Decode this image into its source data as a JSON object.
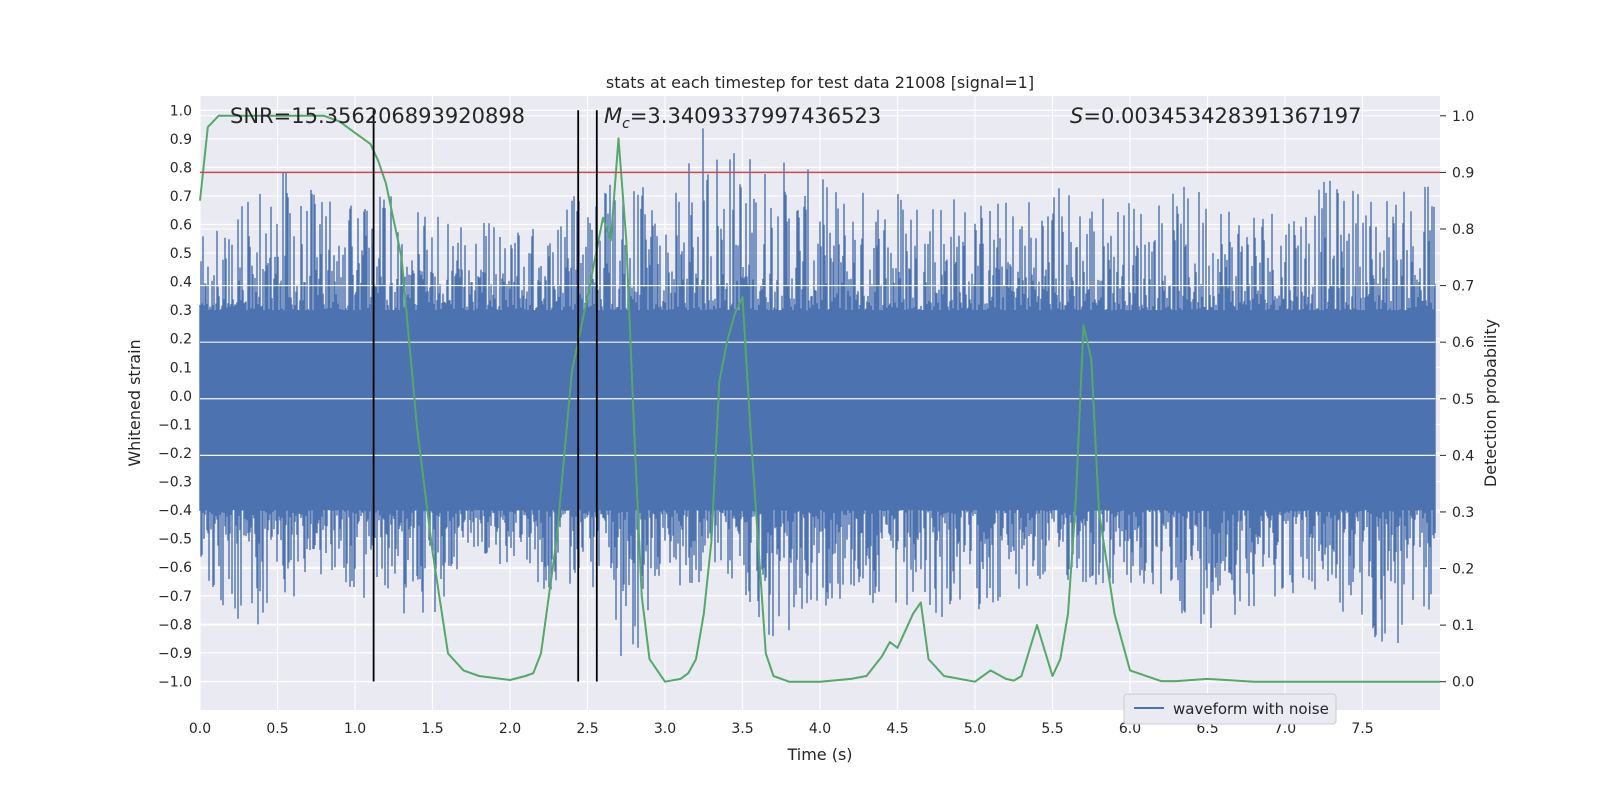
{
  "chart_data": {
    "type": "line",
    "title": "stats at each timestep for test data 21008 [signal=1]",
    "xlabel": "Time (s)",
    "ylabel_left": "Whitened strain",
    "ylabel_right": "Detection probability",
    "xlim": [
      0.0,
      8.0
    ],
    "ylim_left": [
      -1.1,
      1.05
    ],
    "ylim_right": [
      -0.05,
      1.035
    ],
    "x_ticks": [
      "0.0",
      "0.5",
      "1.0",
      "1.5",
      "2.0",
      "2.5",
      "3.0",
      "3.5",
      "4.0",
      "4.5",
      "5.0",
      "5.5",
      "6.0",
      "6.5",
      "7.0",
      "7.5"
    ],
    "y_ticks_left": [
      "1.0",
      "0.9",
      "0.8",
      "0.7",
      "0.6",
      "0.5",
      "0.4",
      "0.3",
      "0.2",
      "0.1",
      "0.0",
      "-0.1",
      "-0.2",
      "-0.3",
      "-0.4",
      "-0.5",
      "-0.6",
      "-0.7",
      "-0.8",
      "-0.9",
      "-1.0"
    ],
    "y_ticks_right": [
      "1.0",
      "0.9",
      "0.8",
      "0.7",
      "0.6",
      "0.5",
      "0.4",
      "0.3",
      "0.2",
      "0.1",
      "0.0"
    ],
    "grid": true,
    "legend_position": "lower-right",
    "annotations": {
      "snr": "SNR=15.356206893920898",
      "mc_symbol": "M",
      "mc_subscript": "c",
      "mc_value": "=3.3409337997436523",
      "s_symbol": "S",
      "s_value": "=0.003453428391367197"
    },
    "colors": {
      "waveform": "#4c72b0",
      "probability": "#55a868",
      "threshold": "#c44e52",
      "markers": "#000000",
      "background": "#eaeaf2"
    },
    "series": [
      {
        "name": "waveform with noise",
        "axis": "left",
        "summary": "dense noise trace spanning roughly -1.0 to 1.0",
        "envelope": {
          "x": [
            0.0,
            0.25,
            0.5,
            0.75,
            1.0,
            1.25,
            1.5,
            1.75,
            2.0,
            2.25,
            2.5,
            2.75,
            3.0,
            3.25,
            3.5,
            3.75,
            4.0,
            4.25,
            4.5,
            4.75,
            5.0,
            5.25,
            5.5,
            5.75,
            6.0,
            6.25,
            6.5,
            6.75,
            7.0,
            7.25,
            7.5,
            7.75,
            8.0
          ],
          "upper": [
            0.65,
            0.68,
            0.83,
            0.72,
            0.66,
            0.72,
            0.65,
            0.62,
            0.6,
            0.62,
            0.75,
            0.83,
            0.62,
            0.97,
            0.88,
            0.85,
            0.77,
            0.74,
            0.77,
            0.75,
            0.7,
            0.7,
            0.77,
            0.74,
            0.7,
            0.72,
            0.76,
            0.7,
            0.71,
            0.76,
            0.75,
            0.72,
            0.83
          ],
          "lower": [
            -0.6,
            -0.87,
            -0.81,
            -0.7,
            -0.7,
            -0.75,
            -0.8,
            -0.6,
            -0.6,
            -0.7,
            -0.65,
            -1.0,
            -0.7,
            -0.65,
            -0.7,
            -0.96,
            -0.75,
            -0.7,
            -0.83,
            -0.8,
            -0.75,
            -0.75,
            -0.65,
            -0.68,
            -0.7,
            -0.75,
            -0.82,
            -0.75,
            -0.7,
            -0.72,
            -0.85,
            -0.93,
            -0.7
          ]
        }
      },
      {
        "name": "",
        "axis": "right",
        "x": [
          0.0,
          0.05,
          0.12,
          0.3,
          0.5,
          0.7,
          0.8,
          0.9,
          1.0,
          1.05,
          1.1,
          1.15,
          1.2,
          1.3,
          1.4,
          1.5,
          1.6,
          1.7,
          1.8,
          2.0,
          2.1,
          2.15,
          2.2,
          2.3,
          2.4,
          2.5,
          2.6,
          2.65,
          2.7,
          2.75,
          2.8,
          2.85,
          2.9,
          3.0,
          3.1,
          3.15,
          3.2,
          3.25,
          3.3,
          3.35,
          3.4,
          3.45,
          3.5,
          3.55,
          3.6,
          3.65,
          3.7,
          3.8,
          4.0,
          4.2,
          4.3,
          4.4,
          4.45,
          4.5,
          4.55,
          4.6,
          4.65,
          4.7,
          4.8,
          5.0,
          5.1,
          5.2,
          5.25,
          5.3,
          5.4,
          5.5,
          5.55,
          5.6,
          5.65,
          5.7,
          5.75,
          5.8,
          5.9,
          6.0,
          6.2,
          6.3,
          6.5,
          6.8,
          7.2,
          7.5,
          8.0
        ],
        "values": [
          0.85,
          0.98,
          1.0,
          1.0,
          1.0,
          1.0,
          1.0,
          0.99,
          0.97,
          0.96,
          0.95,
          0.92,
          0.88,
          0.75,
          0.45,
          0.23,
          0.05,
          0.02,
          0.01,
          0.003,
          0.01,
          0.015,
          0.05,
          0.25,
          0.55,
          0.68,
          0.82,
          0.78,
          0.96,
          0.78,
          0.45,
          0.15,
          0.04,
          0.0,
          0.005,
          0.015,
          0.04,
          0.12,
          0.25,
          0.53,
          0.6,
          0.65,
          0.68,
          0.45,
          0.25,
          0.05,
          0.01,
          0.0,
          0.0,
          0.005,
          0.01,
          0.045,
          0.07,
          0.06,
          0.09,
          0.12,
          0.14,
          0.04,
          0.01,
          0.0,
          0.02,
          0.005,
          0.002,
          0.01,
          0.1,
          0.01,
          0.04,
          0.12,
          0.32,
          0.63,
          0.57,
          0.3,
          0.12,
          0.02,
          0.001,
          0.001,
          0.005,
          0.0,
          0.0,
          0.0,
          0.0
        ]
      },
      {
        "name": "",
        "type": "hline",
        "axis": "right",
        "y": 0.9
      },
      {
        "name": "",
        "type": "vlines",
        "axis": "left",
        "x": [
          1.12,
          2.44,
          2.56
        ],
        "ymin": -1.0,
        "ymax": 1.0
      }
    ]
  }
}
